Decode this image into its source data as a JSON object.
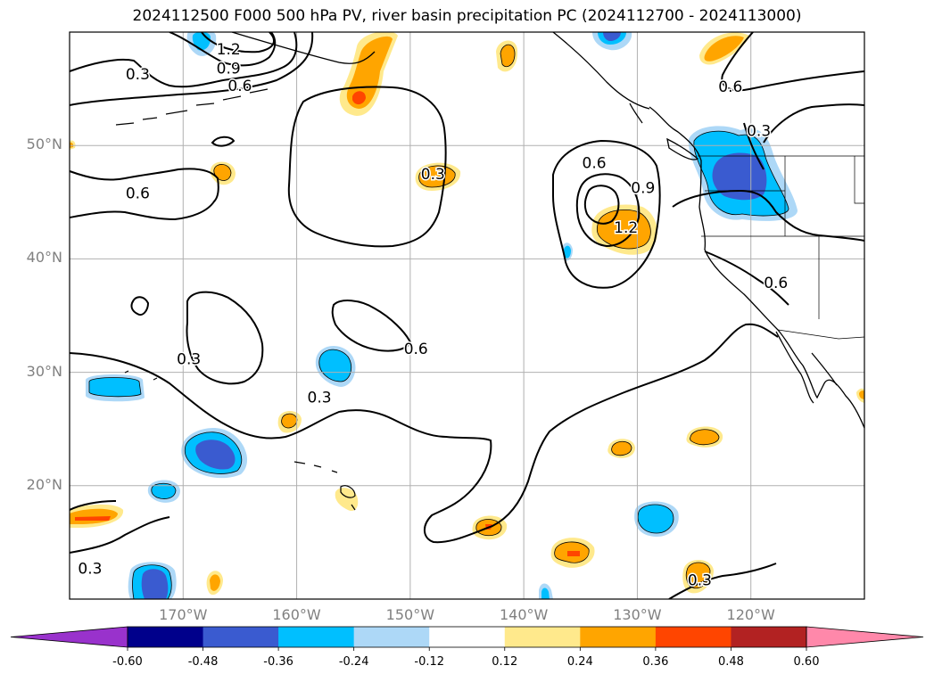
{
  "title": "2024112500 F000 500 hPa PV, river basin precipitation PC (2024112700 - 2024113000)",
  "map": {
    "lat_range": [
      10,
      60
    ],
    "lon_range": [
      -180,
      -110
    ],
    "lat_ticks": [
      {
        "value": 50,
        "label": "50°N"
      },
      {
        "value": 40,
        "label": "40°N"
      },
      {
        "value": 30,
        "label": "30°N"
      },
      {
        "value": 20,
        "label": "20°N"
      }
    ],
    "lon_ticks": [
      {
        "value": -170,
        "label": "170°W"
      },
      {
        "value": -160,
        "label": "160°W"
      },
      {
        "value": -150,
        "label": "150°W"
      },
      {
        "value": -140,
        "label": "140°W"
      },
      {
        "value": -130,
        "label": "130°W"
      },
      {
        "value": -120,
        "label": "120°W"
      }
    ],
    "grid": true
  },
  "pv_contour_labels": [
    {
      "text": "1.2",
      "lon": -166,
      "lat": 58.5
    },
    {
      "text": "0.9",
      "lon": -166,
      "lat": 56.8
    },
    {
      "text": "0.3",
      "lon": -174,
      "lat": 56.3
    },
    {
      "text": "0.6",
      "lon": -165,
      "lat": 55.3
    },
    {
      "text": "0.6",
      "lon": -174,
      "lat": 45.8
    },
    {
      "text": "0.3",
      "lon": -148,
      "lat": 47.5
    },
    {
      "text": "0.6",
      "lon": -133.8,
      "lat": 48.5
    },
    {
      "text": "0.9",
      "lon": -129.5,
      "lat": 46.3
    },
    {
      "text": "1.2",
      "lon": -131,
      "lat": 42.8
    },
    {
      "text": "0.6",
      "lon": -121.8,
      "lat": 55.2
    },
    {
      "text": "0.3",
      "lon": -119.3,
      "lat": 51.3
    },
    {
      "text": "0.6",
      "lon": -117.8,
      "lat": 37.9
    },
    {
      "text": "0.3",
      "lon": -169.5,
      "lat": 31.2
    },
    {
      "text": "0.6",
      "lon": -149.5,
      "lat": 32.1
    },
    {
      "text": "0.3",
      "lon": -158,
      "lat": 27.8
    },
    {
      "text": "0.3",
      "lon": -178.2,
      "lat": 12.7
    },
    {
      "text": "0.3",
      "lon": -124.5,
      "lat": 11.7
    }
  ],
  "colorbar": {
    "boundaries": [
      "-0.60",
      "-0.48",
      "-0.36",
      "-0.24",
      "-0.12",
      "0.12",
      "0.24",
      "0.36",
      "0.48",
      "0.60"
    ],
    "colors": [
      "#9932cc",
      "#00008b",
      "#3a5bd0",
      "#00bfff",
      "#add8f7",
      "#ffffff",
      "#ffe98c",
      "#ffa500",
      "#ff4500",
      "#b22222",
      "#ff88aa"
    ],
    "extend": "both"
  },
  "palette": {
    "pos1": "#ffe98c",
    "pos2": "#ffa500",
    "pos3": "#ff4500",
    "neg1": "#add8f7",
    "neg2": "#00bfff",
    "neg3": "#3a5bd0",
    "neg4": "#00008b"
  }
}
